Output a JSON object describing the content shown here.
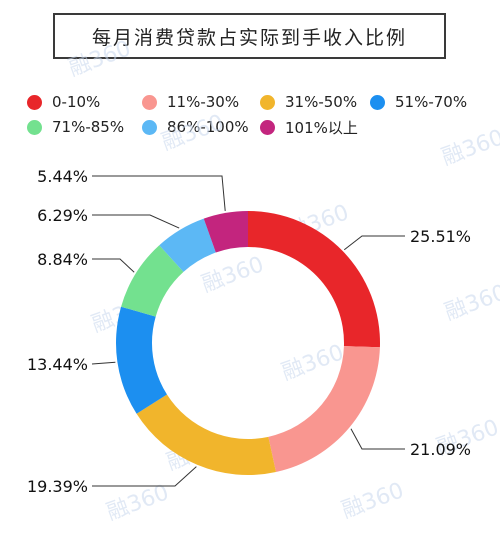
{
  "chart_data": {
    "type": "pie",
    "title": "每月消费贷款占实际到手收入比例",
    "categories": [
      "0-10%",
      "11%-30%",
      "31%-50%",
      "51%-70%",
      "71%-85%",
      "86%-100%",
      "101%以上"
    ],
    "values": [
      25.51,
      21.09,
      19.39,
      13.44,
      8.84,
      6.29,
      5.44
    ],
    "value_labels": [
      "25.51%",
      "21.09%",
      "19.39%",
      "13.44%",
      "8.84%",
      "6.29%",
      "5.44%"
    ],
    "colors": [
      "#e8262a",
      "#f99690",
      "#f1b52c",
      "#1c8ff0",
      "#73e18f",
      "#5cb8f5",
      "#c3257e"
    ],
    "legend_placement": "top",
    "donut": true
  },
  "watermark": "融360"
}
